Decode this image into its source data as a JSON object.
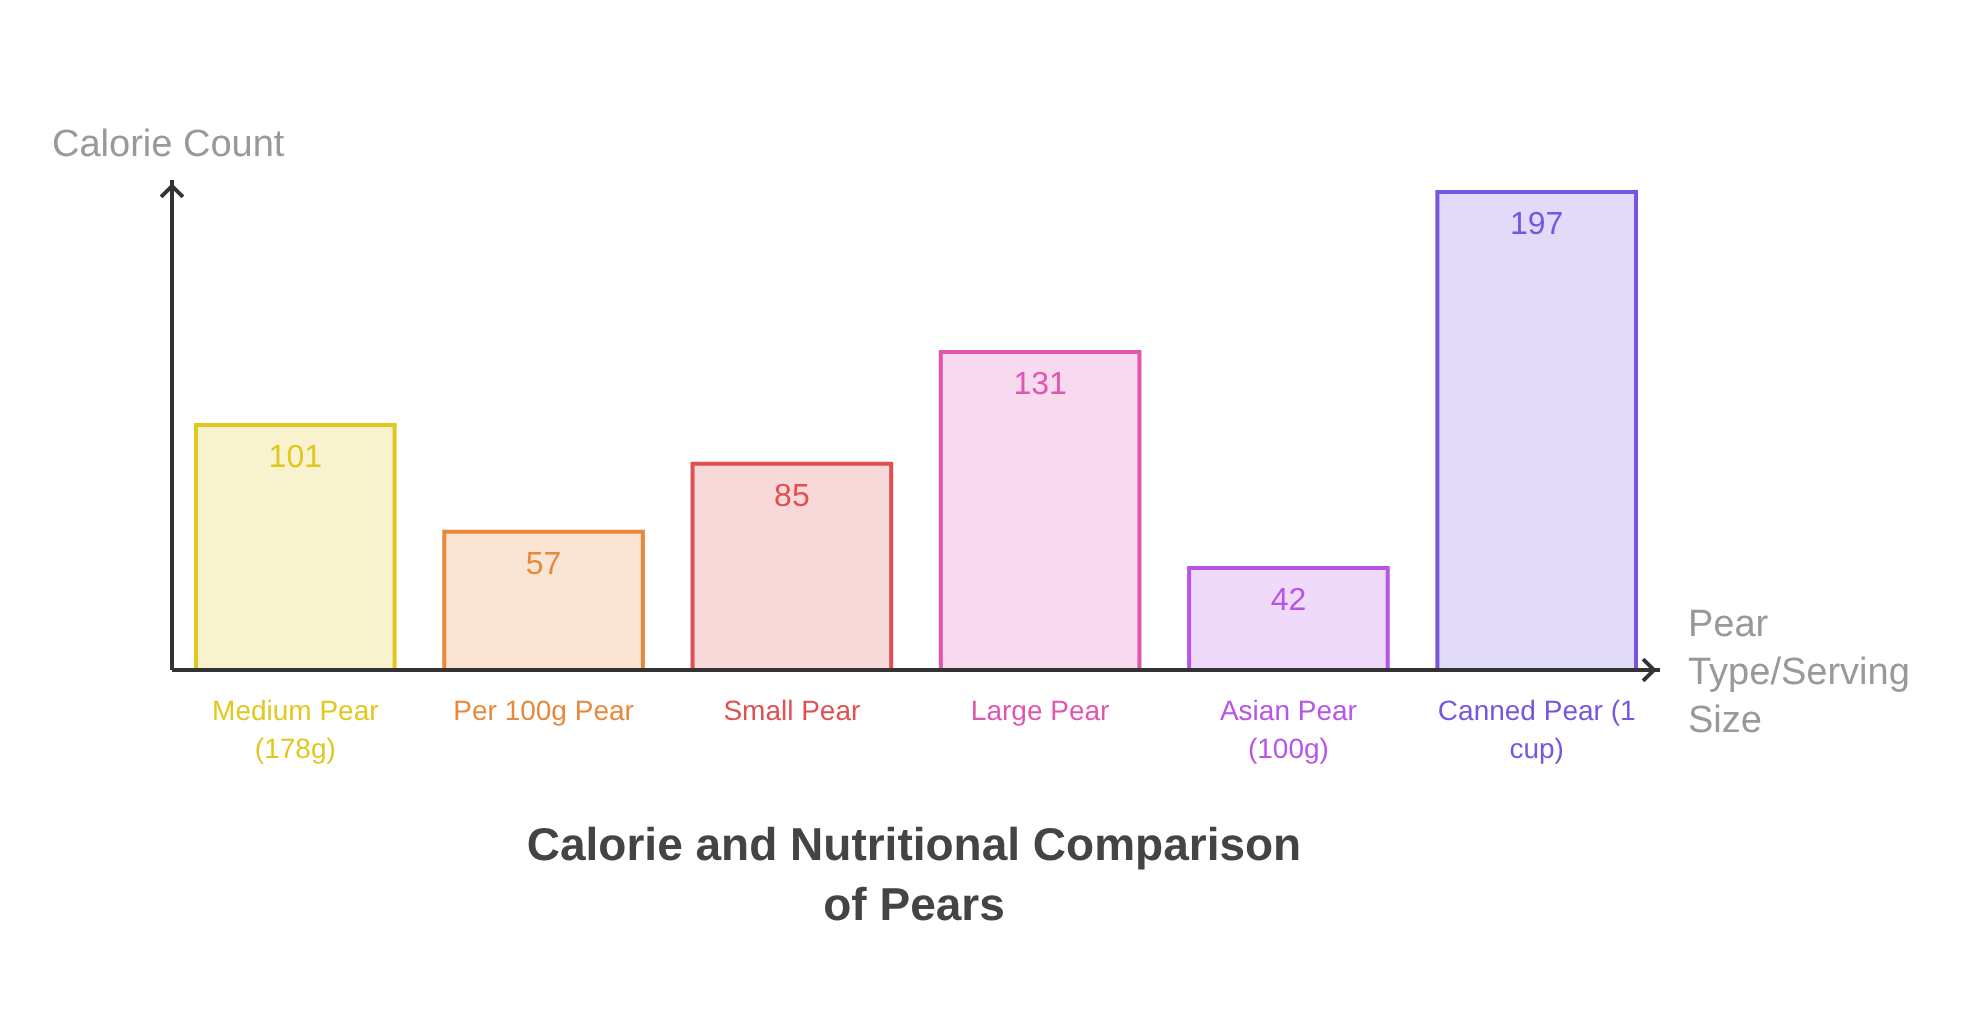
{
  "chart_data": {
    "type": "bar",
    "title": "Calorie and Nutritional Comparison of Pears",
    "xlabel": "Pear Type/Serving Size",
    "ylabel": "Calorie Count",
    "categories": [
      "Medium Pear (178g)",
      "Per 100g Pear",
      "Small Pear",
      "Large Pear",
      "Asian Pear (100g)",
      "Canned Pear (1 cup)"
    ],
    "values": [
      101,
      57,
      85,
      131,
      42,
      197
    ],
    "colors": [
      "#e0c820",
      "#e8883a",
      "#e05050",
      "#e055b0",
      "#b855e8",
      "#7755e0"
    ],
    "data_labels": true
  }
}
